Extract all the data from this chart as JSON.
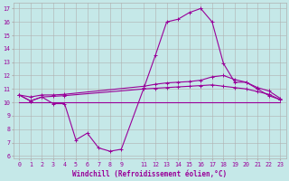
{
  "xlabel": "Windchill (Refroidissement éolien,°C)",
  "bg_color": "#c5e8e8",
  "line_color": "#990099",
  "grid_color": "#b0b0b0",
  "xlim": [
    -0.5,
    23.5
  ],
  "ylim": [
    5.8,
    17.4
  ],
  "yticks": [
    6,
    7,
    8,
    9,
    10,
    11,
    12,
    13,
    14,
    15,
    16,
    17
  ],
  "xticks": [
    0,
    1,
    2,
    3,
    4,
    5,
    6,
    7,
    8,
    9,
    11,
    12,
    13,
    14,
    15,
    16,
    17,
    18,
    19,
    20,
    21,
    22,
    23
  ],
  "line1_x": [
    0,
    1,
    2,
    3,
    4,
    5,
    6,
    7,
    8,
    9,
    11,
    12,
    13,
    14,
    15,
    16,
    17,
    18,
    19,
    20,
    21,
    22,
    23
  ],
  "line1_y": [
    10.55,
    10.1,
    10.4,
    9.9,
    9.9,
    7.2,
    7.7,
    6.6,
    6.35,
    6.5,
    11.1,
    13.5,
    16.0,
    16.2,
    16.7,
    17.0,
    16.0,
    12.9,
    11.5,
    11.5,
    11.0,
    10.5,
    10.2
  ],
  "line2_x": [
    0,
    1,
    2,
    3,
    4,
    11,
    12,
    13,
    14,
    15,
    16,
    17,
    18,
    19,
    20,
    21,
    22,
    23
  ],
  "line2_y": [
    10.55,
    10.4,
    10.55,
    10.55,
    10.6,
    11.2,
    11.35,
    11.45,
    11.5,
    11.55,
    11.65,
    11.9,
    12.0,
    11.7,
    11.5,
    11.1,
    10.85,
    10.3
  ],
  "line3_x": [
    0,
    1,
    2,
    3,
    4,
    11,
    12,
    13,
    14,
    15,
    16,
    17,
    18,
    19,
    20,
    21,
    22,
    23
  ],
  "line3_y": [
    10.55,
    10.1,
    10.4,
    10.45,
    10.5,
    11.0,
    11.05,
    11.1,
    11.15,
    11.2,
    11.25,
    11.3,
    11.2,
    11.1,
    11.0,
    10.8,
    10.6,
    10.2
  ],
  "line4_x": [
    0,
    3,
    4,
    23
  ],
  "line4_y": [
    10.0,
    10.0,
    10.0,
    10.0
  ],
  "marker_size": 1.5,
  "lw": 0.8,
  "label_fontsize": 5.5,
  "tick_fontsize": 4.8
}
